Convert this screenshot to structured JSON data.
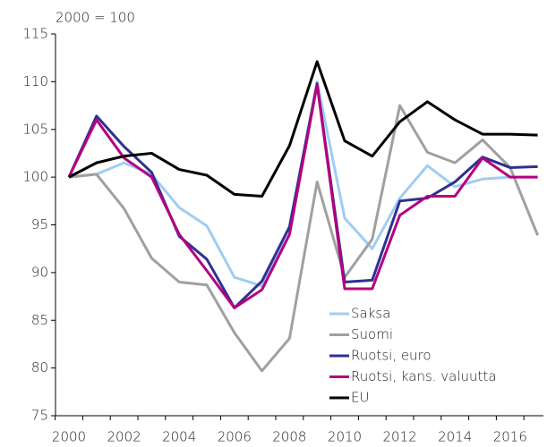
{
  "chart_data": {
    "type": "line",
    "annotation": "2000 = 100",
    "categories": [
      "2000",
      null,
      "2002",
      null,
      "2004",
      null,
      "2006",
      null,
      "2008",
      null,
      "2010",
      null,
      "2012",
      null,
      "2014",
      null,
      "2016",
      null
    ],
    "series": [
      {
        "name": "Saksa",
        "color": "#9fcdf3",
        "values": [
          100,
          100.3,
          101.5,
          100.3,
          96.8,
          94.9,
          89.5,
          88.6,
          94.8,
          110,
          95.7,
          92.5,
          97.8,
          101.2,
          99,
          99.8,
          100,
          100
        ]
      },
      {
        "name": "Suomi",
        "color": "#a0a0a0",
        "values": [
          100,
          100.3,
          96.7,
          91.5,
          89,
          88.7,
          83.7,
          79.7,
          83.1,
          99.5,
          89.5,
          93.5,
          107.5,
          102.6,
          101.5,
          103.9,
          101,
          93.9
        ]
      },
      {
        "name": "Ruotsi, euro",
        "color": "#2e3192",
        "values": [
          100,
          106.4,
          103.2,
          100.5,
          93.8,
          91.4,
          86.3,
          89.1,
          94.8,
          109.8,
          89,
          89.2,
          97.5,
          97.8,
          99.5,
          102.1,
          101,
          101.1
        ]
      },
      {
        "name": "Ruotsi, kans. valuutta",
        "color": "#b5007f",
        "values": [
          100,
          106,
          102,
          100,
          94,
          90.2,
          86.3,
          88.2,
          94,
          109.7,
          88.3,
          88.3,
          96,
          98,
          98,
          102,
          100,
          100
        ]
      },
      {
        "name": "EU",
        "color": "#000000",
        "values": [
          100,
          101.5,
          102.2,
          102.5,
          100.8,
          100.2,
          98.2,
          98,
          103.3,
          112.1,
          103.8,
          102.2,
          105.8,
          107.9,
          106,
          104.5,
          104.5,
          104.4
        ]
      }
    ],
    "ylim": [
      75,
      115
    ],
    "yticks": [
      75,
      80,
      85,
      90,
      95,
      100,
      105,
      110,
      115
    ],
    "legend": "lower right"
  }
}
